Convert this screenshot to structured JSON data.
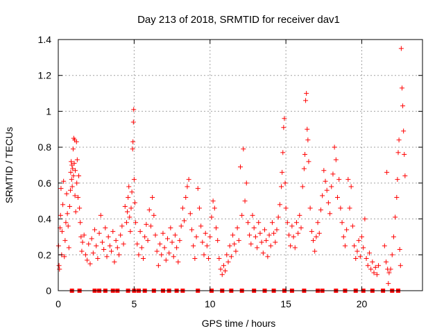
{
  "chart_data": {
    "type": "scatter",
    "title": "Day 213 of 2018, SRMTID for receiver dav1",
    "xlabel": "GPS time / hours",
    "ylabel": "SRMTID / TECUs",
    "xlim": [
      0,
      24
    ],
    "ylim": [
      0,
      1.4
    ],
    "xticks": [
      0,
      5,
      10,
      15,
      20
    ],
    "xtick_labels": [
      "0",
      "5",
      "10",
      "15",
      "20"
    ],
    "yticks": [
      0,
      0.2,
      0.4,
      0.6,
      0.8,
      1,
      1.2,
      1.4
    ],
    "ytick_labels": [
      "0",
      "0.2",
      "0.4",
      "0.6",
      "0.8",
      "1",
      "1.2",
      "1.4"
    ],
    "grid": true,
    "marker": "+",
    "color": "#ff0000",
    "series": [
      {
        "name": "SRMTID",
        "points": [
          [
            0.02,
            0.25
          ],
          [
            0.05,
            0.14
          ],
          [
            0.08,
            0.12
          ],
          [
            0.12,
            0.35
          ],
          [
            0.15,
            0.42
          ],
          [
            0.18,
            0.57
          ],
          [
            0.22,
            0.2
          ],
          [
            0.25,
            0.33
          ],
          [
            0.3,
            0.48
          ],
          [
            0.35,
            0.61
          ],
          [
            0.4,
            0.19
          ],
          [
            0.45,
            0.28
          ],
          [
            0.5,
            0.38
          ],
          [
            0.55,
            0.54
          ],
          [
            0.6,
            0.43
          ],
          [
            0.65,
            0.36
          ],
          [
            0.7,
            0.24
          ],
          [
            0.75,
            0.47
          ],
          [
            0.8,
            0.56
          ],
          [
            0.82,
            0.66
          ],
          [
            0.85,
            0.72
          ],
          [
            0.88,
            0.62
          ],
          [
            0.9,
            0.7
          ],
          [
            0.92,
            0.58
          ],
          [
            0.95,
            0.68
          ],
          [
            0.98,
            0.79
          ],
          [
            1.0,
            0.64
          ],
          [
            1.02,
            0.85
          ],
          [
            1.05,
            0.71
          ],
          [
            1.08,
            0.84
          ],
          [
            1.1,
            0.53
          ],
          [
            1.12,
            0.67
          ],
          [
            1.15,
            0.44
          ],
          [
            1.2,
            0.83
          ],
          [
            1.22,
            0.6
          ],
          [
            1.25,
            0.73
          ],
          [
            1.3,
            0.52
          ],
          [
            1.35,
            0.64
          ],
          [
            1.4,
            0.46
          ],
          [
            1.45,
            0.38
          ],
          [
            1.5,
            0.3
          ],
          [
            1.55,
            0.22
          ],
          [
            1.6,
            0.27
          ],
          [
            1.7,
            0.31
          ],
          [
            1.8,
            0.2
          ],
          [
            1.9,
            0.17
          ],
          [
            2.0,
            0.26
          ],
          [
            2.1,
            0.15
          ],
          [
            2.2,
            0.29
          ],
          [
            2.3,
            0.21
          ],
          [
            2.4,
            0.34
          ],
          [
            2.5,
            0.25
          ],
          [
            2.6,
            0.18
          ],
          [
            2.7,
            0.32
          ],
          [
            2.8,
            0.42
          ],
          [
            2.9,
            0.27
          ],
          [
            3.0,
            0.23
          ],
          [
            3.1,
            0.35
          ],
          [
            3.2,
            0.19
          ],
          [
            3.3,
            0.3
          ],
          [
            3.4,
            0.25
          ],
          [
            3.5,
            0.22
          ],
          [
            3.6,
            0.33
          ],
          [
            3.7,
            0.16
          ],
          [
            3.8,
            0.28
          ],
          [
            3.9,
            0.24
          ],
          [
            4.0,
            0.2
          ],
          [
            4.1,
            0.31
          ],
          [
            4.2,
            0.36
          ],
          [
            4.3,
            0.26
          ],
          [
            4.4,
            0.47
          ],
          [
            4.5,
            0.38
          ],
          [
            4.55,
            0.44
          ],
          [
            4.6,
            0.52
          ],
          [
            4.65,
            0.58
          ],
          [
            4.7,
            0.41
          ],
          [
            4.75,
            0.33
          ],
          [
            4.8,
            0.46
          ],
          [
            4.85,
            0.55
          ],
          [
            4.9,
            0.79
          ],
          [
            4.92,
            0.83
          ],
          [
            4.95,
            0.94
          ],
          [
            4.97,
            1.01
          ],
          [
            5.0,
            0.62
          ],
          [
            5.05,
            0.49
          ],
          [
            5.1,
            0.38
          ],
          [
            5.2,
            0.26
          ],
          [
            5.3,
            0.2
          ],
          [
            5.4,
            0.33
          ],
          [
            5.5,
            0.24
          ],
          [
            5.6,
            0.18
          ],
          [
            5.7,
            0.3
          ],
          [
            5.8,
            0.37
          ],
          [
            5.9,
            0.28
          ],
          [
            6.0,
            0.45
          ],
          [
            6.1,
            0.36
          ],
          [
            6.2,
            0.52
          ],
          [
            6.3,
            0.42
          ],
          [
            6.4,
            0.31
          ],
          [
            6.5,
            0.22
          ],
          [
            6.6,
            0.14
          ],
          [
            6.7,
            0.26
          ],
          [
            6.8,
            0.2
          ],
          [
            6.9,
            0.32
          ],
          [
            7.0,
            0.24
          ],
          [
            7.1,
            0.17
          ],
          [
            7.2,
            0.29
          ],
          [
            7.3,
            0.21
          ],
          [
            7.4,
            0.35
          ],
          [
            7.5,
            0.27
          ],
          [
            7.6,
            0.19
          ],
          [
            7.7,
            0.31
          ],
          [
            7.8,
            0.24
          ],
          [
            7.9,
            0.16
          ],
          [
            8.0,
            0.28
          ],
          [
            8.1,
            0.36
          ],
          [
            8.2,
            0.46
          ],
          [
            8.3,
            0.39
          ],
          [
            8.4,
            0.52
          ],
          [
            8.5,
            0.58
          ],
          [
            8.6,
            0.62
          ],
          [
            8.7,
            0.43
          ],
          [
            8.8,
            0.34
          ],
          [
            8.9,
            0.25
          ],
          [
            9.0,
            0.18
          ],
          [
            9.1,
            0.3
          ],
          [
            9.2,
            0.57
          ],
          [
            9.3,
            0.46
          ],
          [
            9.4,
            0.36
          ],
          [
            9.5,
            0.27
          ],
          [
            9.6,
            0.2
          ],
          [
            9.7,
            0.32
          ],
          [
            9.8,
            0.25
          ],
          [
            9.9,
            0.18
          ],
          [
            10.0,
            0.3
          ],
          [
            10.1,
            0.41
          ],
          [
            10.2,
            0.5
          ],
          [
            10.3,
            0.46
          ],
          [
            10.4,
            0.35
          ],
          [
            10.5,
            0.28
          ],
          [
            10.6,
            0.18
          ],
          [
            10.7,
            0.12
          ],
          [
            10.8,
            0.09
          ],
          [
            10.9,
            0.14
          ],
          [
            11.0,
            0.11
          ],
          [
            11.1,
            0.2
          ],
          [
            11.2,
            0.16
          ],
          [
            11.3,
            0.25
          ],
          [
            11.4,
            0.19
          ],
          [
            11.5,
            0.31
          ],
          [
            11.6,
            0.26
          ],
          [
            11.7,
            0.22
          ],
          [
            11.8,
            0.35
          ],
          [
            11.9,
            0.28
          ],
          [
            12.0,
            0.69
          ],
          [
            12.1,
            0.42
          ],
          [
            12.2,
            0.79
          ],
          [
            12.3,
            0.5
          ],
          [
            12.4,
            0.6
          ],
          [
            12.5,
            0.38
          ],
          [
            12.6,
            0.31
          ],
          [
            12.7,
            0.26
          ],
          [
            12.8,
            0.42
          ],
          [
            12.9,
            0.35
          ],
          [
            13.0,
            0.3
          ],
          [
            13.1,
            0.24
          ],
          [
            13.2,
            0.38
          ],
          [
            13.3,
            0.32
          ],
          [
            13.4,
            0.27
          ],
          [
            13.5,
            0.21
          ],
          [
            13.6,
            0.34
          ],
          [
            13.7,
            0.28
          ],
          [
            13.8,
            0.19
          ],
          [
            13.9,
            0.31
          ],
          [
            14.0,
            0.25
          ],
          [
            14.1,
            0.38
          ],
          [
            14.2,
            0.32
          ],
          [
            14.3,
            0.27
          ],
          [
            14.4,
            0.34
          ],
          [
            14.5,
            0.41
          ],
          [
            14.6,
            0.48
          ],
          [
            14.7,
            0.58
          ],
          [
            14.75,
            0.66
          ],
          [
            14.8,
            0.77
          ],
          [
            14.85,
            0.91
          ],
          [
            14.9,
            0.96
          ],
          [
            14.95,
            0.6
          ],
          [
            15.0,
            0.46
          ],
          [
            15.1,
            0.38
          ],
          [
            15.2,
            0.31
          ],
          [
            15.3,
            0.25
          ],
          [
            15.4,
            0.36
          ],
          [
            15.5,
            0.3
          ],
          [
            15.6,
            0.24
          ],
          [
            15.7,
            0.38
          ],
          [
            15.8,
            0.32
          ],
          [
            15.9,
            0.42
          ],
          [
            16.0,
            0.35
          ],
          [
            16.1,
            0.58
          ],
          [
            16.2,
            0.68
          ],
          [
            16.25,
            0.76
          ],
          [
            16.3,
            1.06
          ],
          [
            16.35,
            1.1
          ],
          [
            16.4,
            0.9
          ],
          [
            16.45,
            0.84
          ],
          [
            16.5,
            0.72
          ],
          [
            16.6,
            0.46
          ],
          [
            16.7,
            0.33
          ],
          [
            16.8,
            0.28
          ],
          [
            16.9,
            0.22
          ],
          [
            17.0,
            0.3
          ],
          [
            17.1,
            0.38
          ],
          [
            17.2,
            0.32
          ],
          [
            17.3,
            0.45
          ],
          [
            17.4,
            0.53
          ],
          [
            17.5,
            0.67
          ],
          [
            17.6,
            0.61
          ],
          [
            17.7,
            0.56
          ],
          [
            17.8,
            0.49
          ],
          [
            17.9,
            0.43
          ],
          [
            18.0,
            0.58
          ],
          [
            18.1,
            0.65
          ],
          [
            18.2,
            0.8
          ],
          [
            18.3,
            0.73
          ],
          [
            18.4,
            0.52
          ],
          [
            18.5,
            0.62
          ],
          [
            18.6,
            0.46
          ],
          [
            18.7,
            0.38
          ],
          [
            18.8,
            0.3
          ],
          [
            18.9,
            0.25
          ],
          [
            19.0,
            0.34
          ],
          [
            19.1,
            0.62
          ],
          [
            19.2,
            0.46
          ],
          [
            19.3,
            0.58
          ],
          [
            19.4,
            0.36
          ],
          [
            19.5,
            0.25
          ],
          [
            19.6,
            0.18
          ],
          [
            19.7,
            0.22
          ],
          [
            19.8,
            0.28
          ],
          [
            19.9,
            0.19
          ],
          [
            20.0,
            0.3
          ],
          [
            20.1,
            0.24
          ],
          [
            20.2,
            0.4
          ],
          [
            20.3,
            0.18
          ],
          [
            20.4,
            0.14
          ],
          [
            20.5,
            0.21
          ],
          [
            20.6,
            0.12
          ],
          [
            20.7,
            0.16
          ],
          [
            20.8,
            0.1
          ],
          [
            20.9,
            0.13
          ],
          [
            21.0,
            0.09
          ],
          [
            21.1,
            0.14
          ],
          [
            21.5,
            0.25
          ],
          [
            21.6,
            0.16
          ],
          [
            21.65,
            0.66
          ],
          [
            21.7,
            0.12
          ],
          [
            21.75,
            0.04
          ],
          [
            21.8,
            0.1
          ],
          [
            21.9,
            0.12
          ],
          [
            22.0,
            0.2
          ],
          [
            22.1,
            0.3
          ],
          [
            22.2,
            0.41
          ],
          [
            22.3,
            0.52
          ],
          [
            22.35,
            0.62
          ],
          [
            22.4,
            0.77
          ],
          [
            22.45,
            0.84
          ],
          [
            22.5,
            0.23
          ],
          [
            22.55,
            0.14
          ],
          [
            22.6,
            1.35
          ],
          [
            22.65,
            1.13
          ],
          [
            22.7,
            1.03
          ],
          [
            22.75,
            0.89
          ],
          [
            22.8,
            0.76
          ],
          [
            22.85,
            0.64
          ]
        ]
      }
    ],
    "zero_points_x": [
      0.9,
      1.4,
      2.4,
      2.7,
      3.1,
      3.6,
      3.9,
      4.6,
      5.0,
      5.3,
      5.7,
      6.3,
      6.9,
      7.3,
      7.8,
      8.2,
      9.2,
      10.1,
      10.8,
      11.4,
      12.1,
      12.9,
      13.6,
      14.2,
      14.9,
      15.4,
      16.2,
      17.1,
      17.4,
      18.3,
      18.9,
      19.6,
      20.1,
      20.7,
      21.4,
      22.0,
      22.4
    ]
  }
}
